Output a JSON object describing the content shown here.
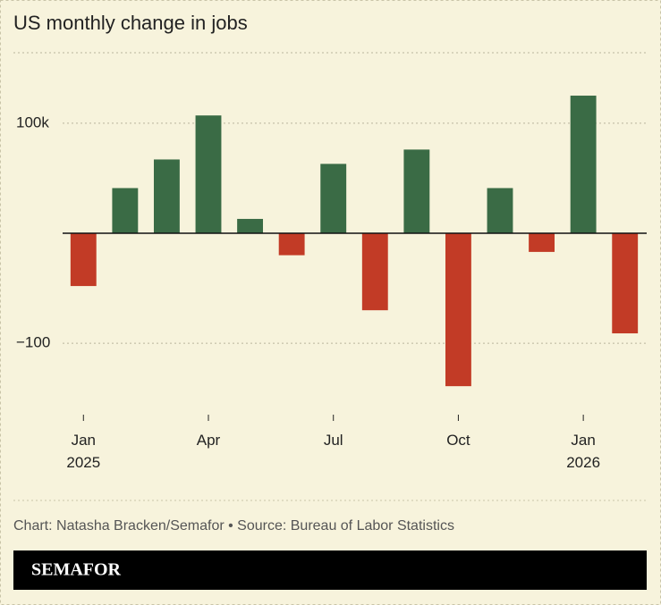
{
  "chart_data": {
    "type": "bar",
    "title": "US monthly change in jobs",
    "categories": [
      "Jan\n2025",
      null,
      null,
      "Apr",
      null,
      null,
      "Jul",
      null,
      null,
      "Oct",
      null,
      null,
      "Jan\n2026",
      null
    ],
    "values": [
      -48,
      41,
      67,
      107,
      13,
      -20,
      63,
      -70,
      76,
      -139,
      41,
      -17,
      125,
      -91
    ],
    "positive_color": "#3a6b45",
    "negative_color": "#c23b26",
    "ylim": [
      -160,
      164
    ],
    "yticks": [
      {
        "value": -100,
        "label": "−100"
      },
      {
        "value": 100,
        "label": "100k"
      }
    ],
    "grid": true,
    "source": "Chart: Natasha Bracken/Semafor • Source: Bureau of Labor Statistics",
    "brand": "SEMAFOR"
  }
}
